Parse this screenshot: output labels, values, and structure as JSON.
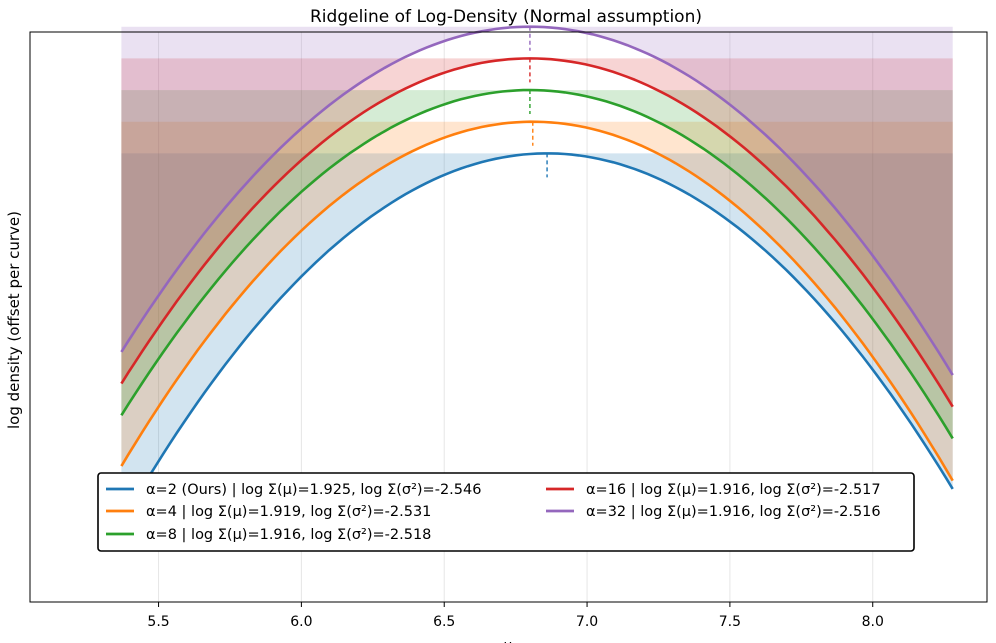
{
  "chart_data": {
    "type": "line",
    "title": "Ridgeline of Log-Density (Normal assumption)",
    "xlabel": "μ",
    "ylabel": "log density (offset per curve)",
    "xlim": [
      5.05,
      8.4
    ],
    "ylim": [
      -0.75,
      4.65
    ],
    "x_ticks": [
      5.5,
      6.0,
      6.5,
      7.0,
      7.5,
      8.0
    ],
    "x_tick_labels": [
      "5.5",
      "6.0",
      "6.5",
      "7.0",
      "7.5",
      "8.0"
    ],
    "x_range": [
      5.37,
      8.28
    ],
    "grid": true,
    "legend_position": "bottom-center",
    "series": [
      {
        "name": "α=2 (Ours) | log Σ(μ)=1.925, log Σ(σ²)=-2.546",
        "color": "#1f77b4",
        "mean": 6.86,
        "peak": 3.5,
        "min": 0.0,
        "offset": 0
      },
      {
        "name": "α=4 | log Σ(μ)=1.919, log Σ(σ²)=-2.531",
        "color": "#ff7f0e",
        "mean": 6.81,
        "peak": 3.8,
        "min": 0.4,
        "offset": 1
      },
      {
        "name": "α=8 | log Σ(μ)=1.916, log Σ(σ²)=-2.518",
        "color": "#2ca02c",
        "mean": 6.8,
        "peak": 4.1,
        "min": 0.8,
        "offset": 2
      },
      {
        "name": "α=16 | log Σ(μ)=1.916, log Σ(σ²)=-2.517",
        "color": "#d62728",
        "mean": 6.8,
        "peak": 4.4,
        "min": 1.1,
        "offset": 3
      },
      {
        "name": "α=32 | log Σ(μ)=1.916, log Σ(σ²)=-2.516",
        "color": "#9467bd",
        "mean": 6.8,
        "peak": 4.7,
        "min": 1.4,
        "offset": 4
      }
    ]
  }
}
